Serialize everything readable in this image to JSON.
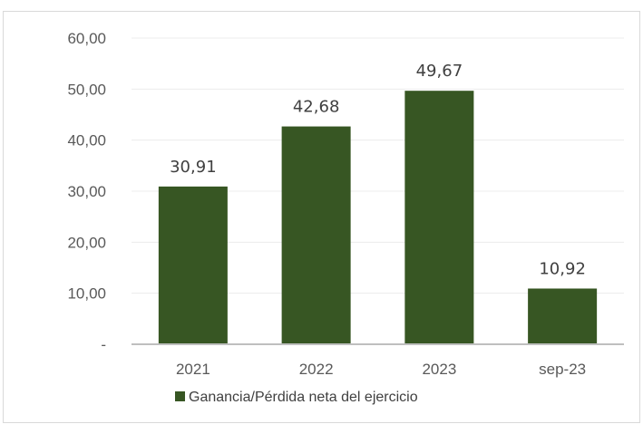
{
  "chart_data": {
    "type": "bar",
    "categories": [
      "2021",
      "2022",
      "2023",
      "sep-23"
    ],
    "series": [
      {
        "name": "Ganancia/Pérdida neta del ejercicio",
        "values": [
          30.91,
          42.68,
          49.67,
          10.92
        ],
        "value_labels": [
          "30,91",
          "42,68",
          "49,67",
          "10,92"
        ],
        "color": "#375623"
      }
    ],
    "ylim": [
      0,
      60
    ],
    "yticks": [
      0,
      10,
      20,
      30,
      40,
      50,
      60
    ],
    "ytick_labels": [
      "-",
      "10,00",
      "20,00",
      "30,00",
      "40,00",
      "50,00",
      "60,00"
    ],
    "grid": true,
    "legend_position": "bottom",
    "title": "",
    "xlabel": "",
    "ylabel": ""
  }
}
